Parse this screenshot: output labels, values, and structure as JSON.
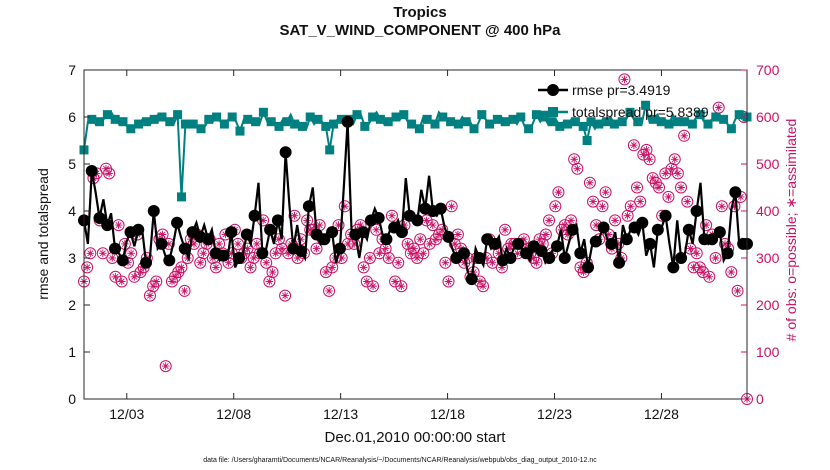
{
  "chart_data": {
    "type": "line",
    "title_line1": "Tropics",
    "title_line2": "SAT_V_WIND_COMPONENT @ 400 hPa",
    "xlabel": "Dec.01,2010 00:00:00 start",
    "ylabel_left": "rmse and totalspread",
    "ylabel_right": "# of obs: o=possible; ∗=assimilated",
    "footer": "data file: /Users/gharamti/Documents/NCAR/Reanalysis/~/Documents/NCAR/Reanalysis/webpub/obs_diag_output_2010-12.nc",
    "xlim": [
      1.0,
      32.0
    ],
    "ylim_left": [
      0,
      7
    ],
    "ylim_right": [
      0,
      700
    ],
    "x_ticks": [
      3,
      8,
      13,
      18,
      23,
      28
    ],
    "x_tick_labels": [
      "12/03",
      "12/08",
      "12/13",
      "12/18",
      "12/23",
      "12/28"
    ],
    "y_ticks_left": [
      0,
      1,
      2,
      3,
      4,
      5,
      6,
      7
    ],
    "y_ticks_right": [
      0,
      100,
      200,
      300,
      400,
      500,
      600,
      700
    ],
    "colors": {
      "rmse": "#000000",
      "totalspread": "#008080",
      "obs": "#cc1166",
      "axis_right": "#cc1166"
    },
    "series": [
      {
        "name": "rmse pr=3.4919",
        "axis": "left",
        "values": [
          3.8,
          3.3,
          4.85,
          4.4,
          3.85,
          4.25,
          3.7,
          3.95,
          3.2,
          3.1,
          2.95,
          3.35,
          3.55,
          3.25,
          3.6,
          3.6,
          2.9,
          3.0,
          4.0,
          3.2,
          3.3,
          3.05,
          2.95,
          3.3,
          3.75,
          3.45,
          3.2,
          3.0,
          3.55,
          3.75,
          3.45,
          3.7,
          3.4,
          3.6,
          3.1,
          2.95,
          3.05,
          3.0,
          3.55,
          2.8,
          3.0,
          3.1,
          3.5,
          3.3,
          3.9,
          4.6,
          3.1,
          3.2,
          3.6,
          3.3,
          3.8,
          3.4,
          5.25,
          4.1,
          3.2,
          3.7,
          3.15,
          3.0,
          4.1,
          4.5,
          3.5,
          3.3,
          3.4,
          3.6,
          3.55,
          2.9,
          3.2,
          4.5,
          5.9,
          3.6,
          3.5,
          3.0,
          3.55,
          3.4,
          3.8,
          4.05,
          3.85,
          3.5,
          3.4,
          3.6,
          3.65,
          3.8,
          3.55,
          4.7,
          3.9,
          3.95,
          3.8,
          4.45,
          4.05,
          4.75,
          4.0,
          3.9,
          4.05,
          3.65,
          3.45,
          3.2,
          3.0,
          2.95,
          3.1,
          2.7,
          2.55,
          3.2,
          3.0,
          2.85,
          3.4,
          3.2,
          3.3,
          3.45,
          2.95,
          3.2,
          3.0,
          3.25,
          3.3,
          3.2,
          3.1,
          2.95,
          3.25,
          3.3,
          3.15,
          2.9,
          3.0,
          3.2,
          3.25,
          3.6,
          3.0,
          3.3,
          3.6,
          3.7,
          3.1,
          3.4,
          2.8,
          3.25,
          3.35,
          3.45,
          3.65,
          3.4,
          3.3,
          3.55,
          2.9,
          3.7,
          3.4,
          3.6,
          3.65,
          3.5,
          3.75,
          3.05,
          3.3,
          2.8,
          3.6,
          3.65,
          3.9,
          3.3,
          2.8,
          3.8,
          3.0,
          3.1,
          3.6,
          3.3,
          4.0,
          4.6,
          3.4,
          3.3,
          3.4,
          3.6,
          3.55,
          2.95,
          3.1,
          4.05,
          4.4,
          3.3,
          3.3,
          3.3
        ]
      },
      {
        "name": "totalspread pr=5.8389",
        "axis": "left",
        "values": [
          5.3,
          5.9,
          5.95,
          5.85,
          5.9,
          5.95,
          6.05,
          6.1,
          5.95,
          5.85,
          5.9,
          5.8,
          5.75,
          5.8,
          5.85,
          5.95,
          5.9,
          5.85,
          5.95,
          6.05,
          6.0,
          5.95,
          5.9,
          5.85,
          6.05,
          4.3,
          5.85,
          5.9,
          5.85,
          5.8,
          5.75,
          5.8,
          5.95,
          5.9,
          6.0,
          5.9,
          5.85,
          5.95,
          6.0,
          5.9,
          5.7,
          5.95,
          5.95,
          5.9,
          5.9,
          5.85,
          6.1,
          5.9,
          5.9,
          5.85,
          5.8,
          5.95,
          5.9,
          6.05,
          5.85,
          5.9,
          5.8,
          5.75,
          6.0,
          5.85,
          5.95,
          5.9,
          5.8,
          5.3,
          5.85,
          5.95,
          5.95,
          5.9,
          5.95,
          5.85,
          6.05,
          6.05,
          5.8,
          5.85,
          6.0,
          6.1,
          5.95,
          5.85,
          5.9,
          5.95,
          6.0,
          5.95,
          6.05,
          5.9,
          5.85,
          5.8,
          5.75,
          6.0,
          5.95,
          5.9,
          5.85,
          6.1,
          6.0,
          5.95,
          5.9,
          5.85,
          5.85,
          6.0,
          5.9,
          5.9,
          5.75,
          5.85,
          6.05,
          5.95,
          5.85,
          5.9,
          5.95,
          6.0,
          5.9,
          5.85,
          5.95,
          5.85,
          6.0,
          5.8,
          5.75,
          5.85,
          6.05,
          5.9,
          6.0,
          5.85,
          5.9,
          5.95,
          5.8,
          5.9,
          5.85,
          5.95,
          5.9,
          5.85,
          5.8,
          5.5,
          5.9,
          5.75,
          5.85,
          5.95,
          5.9,
          6.0,
          5.85,
          5.9,
          5.9,
          5.95,
          6.1,
          5.95,
          5.9,
          5.85,
          6.25,
          5.9,
          5.95,
          6.05,
          5.9,
          5.95,
          5.85,
          6.05,
          5.9,
          5.95,
          5.9,
          5.85,
          5.85,
          6.0,
          6.05,
          5.9,
          5.85,
          5.95,
          6.0,
          6.05,
          5.95,
          5.85,
          5.75,
          5.95,
          6.05,
          6.0,
          6.0
        ]
      }
    ],
    "obs_possible_values": [
      250,
      280,
      310,
      470,
      480,
      380,
      310,
      490,
      480,
      300,
      260,
      370,
      250,
      330,
      290,
      310,
      260,
      350,
      270,
      280,
      300,
      220,
      240,
      250,
      340,
      350,
      70,
      330,
      250,
      260,
      270,
      280,
      230,
      300,
      340,
      330,
      350,
      290,
      310,
      330,
      340,
      300,
      280,
      330,
      310,
      350,
      290,
      310,
      360,
      330,
      300,
      310,
      320,
      280,
      300,
      330,
      310,
      380,
      290,
      250,
      270,
      310,
      340,
      320,
      220,
      310,
      330,
      390,
      300,
      340,
      310,
      380,
      360,
      360,
      320,
      370,
      340,
      270,
      230,
      280,
      300,
      370,
      300,
      410,
      330,
      350,
      330,
      360,
      370,
      280,
      250,
      300,
      240,
      360,
      310,
      340,
      320,
      300,
      390,
      250,
      290,
      240,
      370,
      330,
      310,
      320,
      300,
      340,
      310,
      380,
      330,
      370,
      340,
      350,
      360,
      290,
      250,
      410,
      330,
      350,
      320,
      290,
      300,
      260,
      270,
      300,
      250,
      240,
      300,
      340,
      290,
      330,
      310,
      280,
      360,
      320,
      330,
      330,
      310,
      330,
      340,
      320,
      310,
      300,
      290,
      340,
      330,
      350,
      380,
      310,
      410,
      440,
      360,
      370,
      350,
      380,
      510,
      490,
      280,
      270,
      290,
      460,
      420,
      370,
      340,
      410,
      440,
      350,
      320,
      380,
      330,
      300,
      680,
      390,
      410,
      540,
      450,
      420,
      520,
      530,
      510,
      470,
      460,
      450,
      390,
      480,
      430,
      490,
      510,
      480,
      450,
      560,
      420,
      320,
      280,
      310,
      280,
      270,
      370,
      260,
      350,
      300,
      620,
      410,
      330,
      320,
      270,
      410,
      230,
      430,
      600,
      0
    ]
  },
  "legend": {
    "rmse_label": "rmse pr=3.4919",
    "totalspread_label": "totalspread pr=5.8389"
  }
}
